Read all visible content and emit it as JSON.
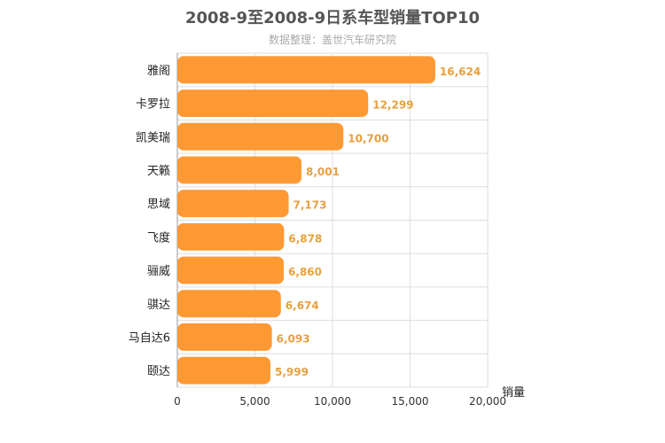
{
  "chart_data": {
    "type": "bar",
    "orientation": "horizontal",
    "title": "2008-9至2008-9日系车型销量TOP10",
    "subtitle": "数据整理：盖世汽车研究院",
    "xlabel": "销量",
    "ylabel": "",
    "xlim": [
      0,
      20000
    ],
    "xticks": [
      "0",
      "5,000",
      "10,000",
      "15,000",
      "20,000"
    ],
    "grid": true,
    "bar_color": "#ff9933",
    "label_color": "#e8a040",
    "categories": [
      "雅阁",
      "卡罗拉",
      "凯美瑞",
      "天籁",
      "思域",
      "飞度",
      "骊威",
      "骐达",
      "马自达6",
      "颐达"
    ],
    "values": [
      16624,
      12299,
      10700,
      8001,
      7173,
      6878,
      6860,
      6674,
      6093,
      5999
    ],
    "value_labels": [
      "16,624",
      "12,299",
      "10,700",
      "8,001",
      "7,173",
      "6,878",
      "6,860",
      "6,674",
      "6,093",
      "5,999"
    ]
  }
}
